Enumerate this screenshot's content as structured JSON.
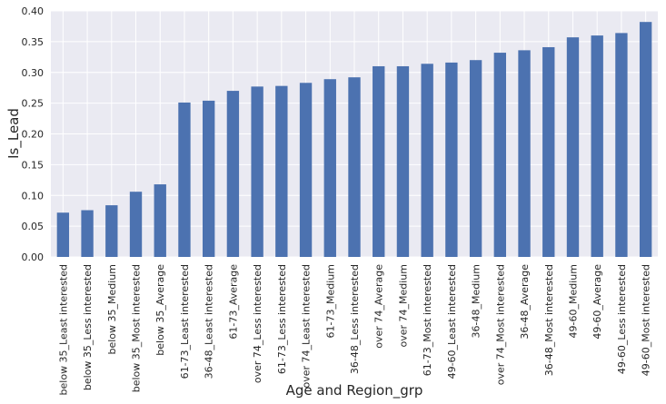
{
  "chart_data": {
    "type": "bar",
    "title": "",
    "xlabel": "Age and Region_grp",
    "ylabel": "Is_Lead",
    "ylim": [
      0,
      0.4
    ],
    "yticks": [
      "0.00",
      "0.05",
      "0.10",
      "0.15",
      "0.20",
      "0.25",
      "0.30",
      "0.35",
      "0.40"
    ],
    "grid": true,
    "legend": "none",
    "colors": {
      "bar": "#4c72b0",
      "plot_bg": "#eaeaf2",
      "grid": "#ffffff",
      "text": "#262626"
    },
    "categories": [
      "below 35_Least interested",
      "below 35_Less interested",
      "below 35_Medium",
      "below 35_Most interested",
      "below 35_Average",
      "61-73_Least interested",
      "36-48_Least interested",
      "61-73_Average",
      "over 74_Less interested",
      "61-73_Less interested",
      "over 74_Least interested",
      "61-73_Medium",
      "36-48_Less interested",
      "over 74_Average",
      "over 74_Medium",
      "61-73_Most interested",
      "49-60_Least interested",
      "36-48_Medium",
      "over 74_Most interested",
      "36-48_Average",
      "36-48_Most interested",
      "49-60_Medium",
      "49-60_Average",
      "49-60_Less interested",
      "49-60_Most interested"
    ],
    "values": [
      0.072,
      0.076,
      0.084,
      0.106,
      0.118,
      0.251,
      0.254,
      0.27,
      0.277,
      0.278,
      0.283,
      0.289,
      0.292,
      0.31,
      0.31,
      0.314,
      0.316,
      0.32,
      0.332,
      0.336,
      0.341,
      0.357,
      0.36,
      0.364,
      0.382
    ]
  }
}
